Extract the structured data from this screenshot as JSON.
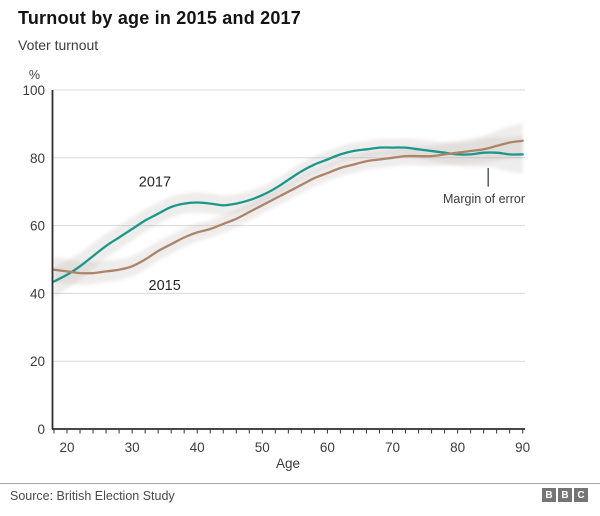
{
  "header": {
    "title": "Turnout by age in 2015 and 2017",
    "subtitle": "Voter turnout"
  },
  "chart_data": {
    "type": "line",
    "title": "Turnout by age in 2015 and 2017",
    "subtitle": "Voter turnout",
    "xlabel": "Age",
    "ylabel": "%",
    "x": [
      18,
      20,
      22,
      24,
      26,
      28,
      30,
      32,
      34,
      36,
      38,
      40,
      42,
      44,
      46,
      48,
      50,
      52,
      54,
      56,
      58,
      60,
      62,
      64,
      66,
      68,
      70,
      72,
      74,
      76,
      78,
      80,
      82,
      84,
      86,
      88,
      90
    ],
    "xlim": [
      17.7,
      90.5
    ],
    "ylim": [
      0,
      100
    ],
    "x_ticks": [
      20,
      30,
      40,
      50,
      60,
      70,
      80,
      90
    ],
    "y_ticks": [
      0,
      20,
      40,
      60,
      80,
      100
    ],
    "minor_x_tick_step": 2,
    "grid": true,
    "legend_position": "inline-labels",
    "band_color": "#a1958e",
    "series": [
      {
        "name": "2017",
        "color": "#1a988a",
        "values": [
          43.5,
          45.5,
          48,
          51,
          54,
          56.5,
          59,
          61.5,
          63.5,
          65.5,
          66.5,
          66.8,
          66.5,
          66,
          66.5,
          67.5,
          69,
          71,
          73.5,
          76,
          78,
          79.5,
          81,
          82,
          82.5,
          83,
          83,
          83,
          82.5,
          82,
          81.5,
          81,
          81,
          81.5,
          81.5,
          81,
          81
        ],
        "margin_of_error": [
          4.5,
          4.2,
          4,
          3.8,
          3.6,
          3.5,
          3.4,
          3.3,
          3.2,
          3.1,
          3,
          3,
          3,
          2.9,
          2.8,
          2.7,
          2.6,
          2.5,
          2.5,
          2.5,
          2.5,
          2.5,
          2.5,
          2.5,
          2.5,
          2.5,
          2.6,
          2.7,
          2.8,
          3,
          3.2,
          3.5,
          3.8,
          4.2,
          4.6,
          5.1,
          5.6
        ],
        "label_pos": {
          "age": 33.5,
          "value": 73
        }
      },
      {
        "name": "2015",
        "color": "#ac8569",
        "values": [
          47,
          46.5,
          46,
          46,
          46.5,
          47,
          48,
          50,
          52.5,
          54.5,
          56.5,
          58,
          59,
          60.5,
          62,
          64,
          66,
          68,
          70,
          72,
          74,
          75.5,
          77,
          78,
          79,
          79.5,
          80,
          80.5,
          80.5,
          80.5,
          81,
          81.5,
          82,
          82.5,
          83.5,
          84.5,
          85
        ],
        "margin_of_error": [
          3.8,
          3.6,
          3.4,
          3.3,
          3.2,
          3.1,
          3,
          3,
          2.9,
          2.8,
          2.8,
          2.7,
          2.6,
          2.6,
          2.5,
          2.5,
          2.5,
          2.5,
          2.5,
          2.5,
          2.5,
          2.5,
          2.5,
          2.5,
          2.5,
          2.5,
          2.6,
          2.7,
          2.8,
          3,
          3.2,
          3.4,
          3.7,
          4,
          4.4,
          4.8,
          5.2
        ],
        "label_pos": {
          "age": 35,
          "value": 42.5
        }
      }
    ],
    "annotation": {
      "label": "Margin of error",
      "pointer_age": 84.7,
      "pointer_value_top": 77,
      "pointer_value_bottom": 71.5
    }
  },
  "footer": {
    "source": "Source: British Election Study",
    "logo": [
      "B",
      "B",
      "C"
    ]
  }
}
